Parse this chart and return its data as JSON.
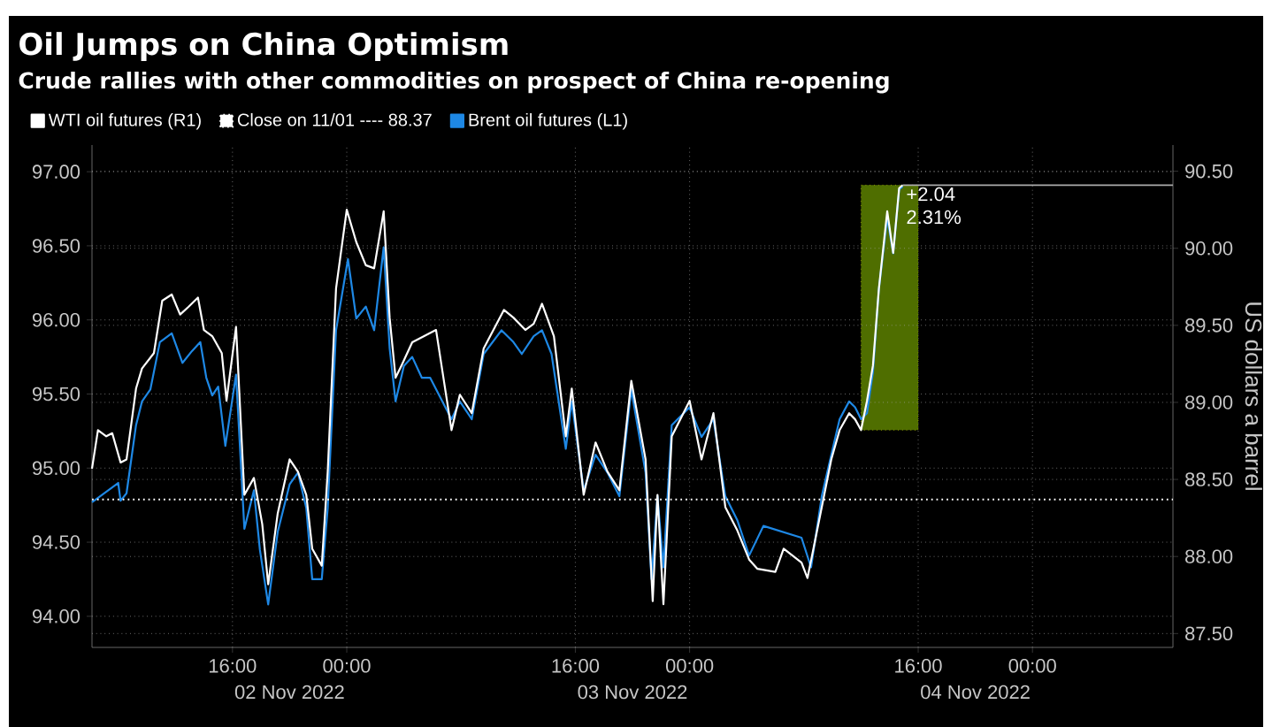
{
  "chart_data": {
    "type": "line",
    "title": "Oil Jumps on China Optimism",
    "subtitle": "Crude rallies with other commodities on prospect of China re-opening",
    "y2label": "US dollars a barrel",
    "xlim": [
      "2022-11-02T06:10",
      "2022-11-05T09:50"
    ],
    "xticks": [
      {
        "value": "2022-11-02T16:00",
        "label": "16:00"
      },
      {
        "value": "2022-11-03T00:00",
        "label": "00:00"
      },
      {
        "value": "2022-11-03T16:00",
        "label": "16:00"
      },
      {
        "value": "2022-11-04T00:00",
        "label": "00:00"
      },
      {
        "value": "2022-11-04T16:00",
        "label": "16:00"
      },
      {
        "value": "2022-11-05T00:00",
        "label": "00:00"
      }
    ],
    "ylim": [
      93.79,
      97.18
    ],
    "yticks": [
      {
        "value": 94,
        "label": "94.00"
      },
      {
        "value": 94.5,
        "label": "94.50"
      },
      {
        "value": 95,
        "label": "95.00"
      },
      {
        "value": 95.5,
        "label": "95.50"
      },
      {
        "value": 96,
        "label": "96.00"
      },
      {
        "value": 96.5,
        "label": "96.50"
      },
      {
        "value": 97,
        "label": "97.00"
      }
    ],
    "y2lim": [
      87.41,
      90.67
    ],
    "y2ticks": [
      {
        "value": 87.5,
        "label": "87.50"
      },
      {
        "value": 88,
        "label": "88.00"
      },
      {
        "value": 88.5,
        "label": "88.50"
      },
      {
        "value": 89,
        "label": "89.00"
      },
      {
        "value": 89.5,
        "label": "89.50"
      },
      {
        "value": 90,
        "label": "90.00"
      },
      {
        "value": 90.5,
        "label": "90.50"
      }
    ],
    "grid": true,
    "legend": "top left",
    "series": [
      {
        "name": "WTI oil futures (R1)",
        "color": "#ffffff",
        "axis": "y2",
        "x": [
          "2022-11-02T06:10",
          "2022-11-02T06:35",
          "2022-11-02T07:10",
          "2022-11-02T07:35",
          "2022-11-02T08:10",
          "2022-11-02T08:35",
          "2022-11-02T09:15",
          "2022-11-02T09:40",
          "2022-11-02T10:30",
          "2022-11-02T11:05",
          "2022-11-02T11:45",
          "2022-11-02T12:20",
          "2022-11-02T12:55",
          "2022-11-02T13:35",
          "2022-11-02T14:00",
          "2022-11-02T14:35",
          "2022-11-02T15:15",
          "2022-11-02T15:35",
          "2022-11-02T16:15",
          "2022-11-02T16:50",
          "2022-11-02T17:30",
          "2022-11-02T18:05",
          "2022-11-02T18:30",
          "2022-11-02T19:10",
          "2022-11-02T20:00",
          "2022-11-02T20:35",
          "2022-11-02T21:10",
          "2022-11-02T21:35",
          "2022-11-02T22:15",
          "2022-11-02T22:40",
          "2022-11-02T23:15",
          "2022-11-03T00:00",
          "2022-11-03T00:40",
          "2022-11-03T01:20",
          "2022-11-03T01:55",
          "2022-11-03T02:35",
          "2022-11-03T03:00",
          "2022-11-03T03:25",
          "2022-11-03T03:50",
          "2022-11-03T04:35",
          "2022-11-03T06:15",
          "2022-11-03T07:20",
          "2022-11-03T07:55",
          "2022-11-03T08:45",
          "2022-11-03T09:35",
          "2022-11-03T11:00",
          "2022-11-03T11:40",
          "2022-11-03T12:30",
          "2022-11-03T13:05",
          "2022-11-03T13:40",
          "2022-11-03T14:30",
          "2022-11-03T15:20",
          "2022-11-03T15:45",
          "2022-11-03T16:35",
          "2022-11-03T17:25",
          "2022-11-03T18:15",
          "2022-11-03T19:05",
          "2022-11-03T19:55",
          "2022-11-03T20:55",
          "2022-11-03T21:25",
          "2022-11-03T21:45",
          "2022-11-03T22:10",
          "2022-11-03T22:45",
          "2022-11-04T00:00",
          "2022-11-04T00:50",
          "2022-11-04T01:40",
          "2022-11-04T02:30",
          "2022-11-04T03:20",
          "2022-11-04T04:10",
          "2022-11-04T04:45",
          "2022-11-04T06:00",
          "2022-11-04T06:35",
          "2022-11-04T07:50",
          "2022-11-04T08:15",
          "2022-11-04T08:40",
          "2022-11-04T09:15",
          "2022-11-04T09:55",
          "2022-11-04T10:30",
          "2022-11-04T11:10",
          "2022-11-04T11:35",
          "2022-11-04T12:00",
          "2022-11-04T12:25",
          "2022-11-04T12:50",
          "2022-11-04T13:15",
          "2022-11-04T13:50",
          "2022-11-04T14:15",
          "2022-11-04T14:40",
          "2022-11-04T14:55"
        ],
        "values": [
          88.57,
          88.82,
          88.78,
          88.8,
          88.61,
          88.63,
          89.09,
          89.22,
          89.32,
          89.66,
          89.7,
          89.57,
          89.62,
          89.68,
          89.47,
          89.43,
          89.32,
          89.01,
          89.49,
          88.4,
          88.51,
          88.21,
          87.82,
          88.28,
          88.63,
          88.55,
          88.4,
          88.05,
          87.94,
          88.55,
          89.74,
          90.25,
          90.04,
          89.89,
          89.87,
          90.24,
          89.55,
          89.16,
          89.24,
          89.39,
          89.47,
          88.82,
          89.05,
          88.93,
          89.35,
          89.6,
          89.55,
          89.47,
          89.51,
          89.64,
          89.43,
          88.78,
          89.09,
          88.4,
          88.74,
          88.55,
          88.43,
          89.14,
          88.63,
          87.71,
          88.4,
          87.69,
          88.78,
          89.01,
          88.63,
          88.93,
          88.32,
          88.17,
          87.98,
          87.92,
          87.9,
          88.05,
          87.96,
          87.86,
          88.05,
          88.32,
          88.63,
          88.82,
          88.93,
          88.89,
          88.82,
          89.01,
          89.24,
          89.74,
          90.24,
          89.97,
          90.39,
          90.41
        ]
      },
      {
        "name": "Brent oil futures (L1)",
        "color": "#1e88e5",
        "x": [
          "2022-11-02T06:10",
          "2022-11-02T08:00",
          "2022-11-02T08:10",
          "2022-11-02T08:35",
          "2022-11-02T09:15",
          "2022-11-02T09:40",
          "2022-11-02T10:15",
          "2022-11-02T10:55",
          "2022-11-02T11:45",
          "2022-11-02T12:30",
          "2022-11-02T13:10",
          "2022-11-02T13:45",
          "2022-11-02T14:10",
          "2022-11-02T14:35",
          "2022-11-02T15:00",
          "2022-11-02T15:30",
          "2022-11-02T16:15",
          "2022-11-02T16:50",
          "2022-11-02T17:30",
          "2022-11-02T17:55",
          "2022-11-02T18:30",
          "2022-11-02T19:10",
          "2022-11-02T20:00",
          "2022-11-02T20:35",
          "2022-11-02T21:10",
          "2022-11-02T21:35",
          "2022-11-02T22:15",
          "2022-11-02T22:40",
          "2022-11-02T23:15",
          "2022-11-03T00:05",
          "2022-11-03T00:40",
          "2022-11-03T01:20",
          "2022-11-03T01:55",
          "2022-11-03T02:35",
          "2022-11-03T03:00",
          "2022-11-03T03:25",
          "2022-11-03T04:00",
          "2022-11-03T04:35",
          "2022-11-03T05:15",
          "2022-11-03T05:50",
          "2022-11-03T07:20",
          "2022-11-03T07:55",
          "2022-11-03T08:45",
          "2022-11-03T09:35",
          "2022-11-03T10:50",
          "2022-11-03T11:40",
          "2022-11-03T12:15",
          "2022-11-03T13:05",
          "2022-11-03T13:40",
          "2022-11-03T14:20",
          "2022-11-03T15:20",
          "2022-11-03T15:45",
          "2022-11-03T16:35",
          "2022-11-03T17:25",
          "2022-11-03T18:15",
          "2022-11-03T19:05",
          "2022-11-03T19:55",
          "2022-11-03T20:55",
          "2022-11-03T21:20",
          "2022-11-03T21:45",
          "2022-11-03T22:10",
          "2022-11-03T22:45",
          "2022-11-04T00:00",
          "2022-11-04T00:50",
          "2022-11-04T01:40",
          "2022-11-04T02:30",
          "2022-11-04T03:20",
          "2022-11-04T04:10",
          "2022-11-04T05:10",
          "2022-11-04T07:50",
          "2022-11-04T08:30",
          "2022-11-04T09:15",
          "2022-11-04T09:55",
          "2022-11-04T10:30",
          "2022-11-04T11:10",
          "2022-11-04T11:35",
          "2022-11-04T12:00",
          "2022-11-04T12:25",
          "2022-11-04T12:50",
          "2022-11-04T13:15",
          "2022-11-04T13:50",
          "2022-11-04T14:15",
          "2022-11-04T14:40",
          "2022-11-04T14:55"
        ],
        "values": [
          94.77,
          94.9,
          94.78,
          94.83,
          95.29,
          95.45,
          95.53,
          95.85,
          95.91,
          95.71,
          95.79,
          95.85,
          95.61,
          95.49,
          95.55,
          95.15,
          95.63,
          94.59,
          94.85,
          94.45,
          94.08,
          94.57,
          94.89,
          94.97,
          94.73,
          94.25,
          94.25,
          94.73,
          95.93,
          96.41,
          96.01,
          96.09,
          95.93,
          96.49,
          95.81,
          95.45,
          95.69,
          95.75,
          95.61,
          95.61,
          95.33,
          95.45,
          95.33,
          95.77,
          95.93,
          95.85,
          95.77,
          95.89,
          95.93,
          95.77,
          95.13,
          95.45,
          94.85,
          95.09,
          94.97,
          94.81,
          95.53,
          94.97,
          94.25,
          94.81,
          94.33,
          95.29,
          95.41,
          95.21,
          95.33,
          94.81,
          94.65,
          94.41,
          94.61,
          94.53,
          94.33,
          94.81,
          95.09,
          95.33,
          95.45,
          95.41,
          95.33,
          95.37,
          95.65,
          96.21,
          96.69,
          96.45,
          96.88,
          96.9
        ]
      }
    ],
    "ref_lines": [
      {
        "axis": "y2",
        "value": 88.37,
        "label": "Close on 11/01 ---- 88.37",
        "color": "#ffffff",
        "line_style": "dotted"
      },
      {
        "axis": "y2",
        "value": 90.41,
        "color": "#aaaaaa",
        "line_style": "solid"
      }
    ],
    "bands": [
      {
        "axis": "x",
        "from": "2022-11-04T12:00",
        "to": "2022-11-04T16:00",
        "color": "#4f6e00",
        "label": "+2.04 2.31%"
      }
    ],
    "annotations": [
      "02 Nov 2022",
      "03 Nov 2022",
      "04 Nov 2022"
    ]
  }
}
